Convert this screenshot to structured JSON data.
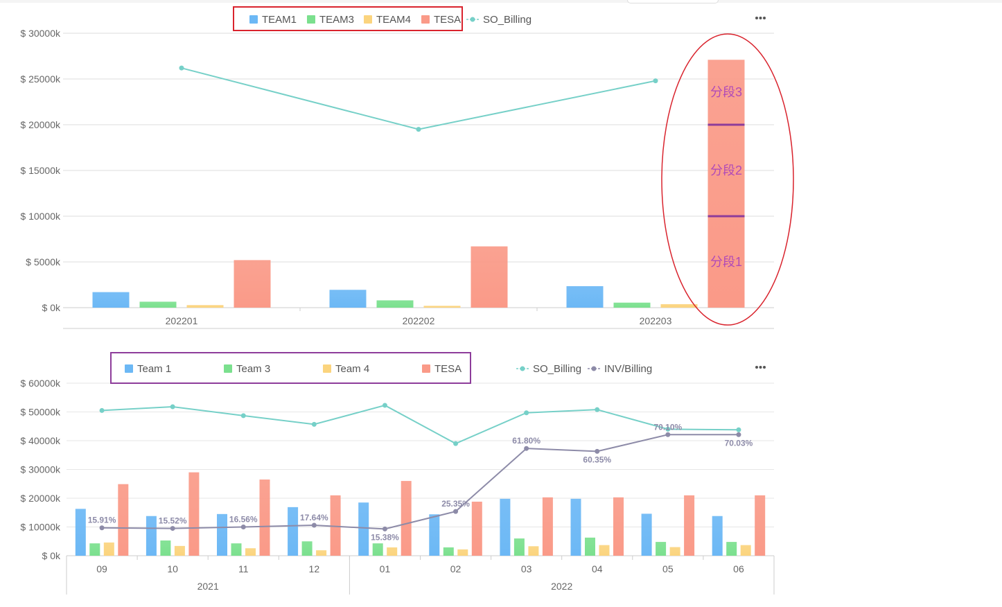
{
  "colors": {
    "team1": "#6cb8f5",
    "team3": "#7be08e",
    "team4": "#fbd47e",
    "tesa": "#fa9a88",
    "so_billing": "#76d0c8",
    "inv_billing": "#8d8ba8",
    "legend_box_red": "#d9232d",
    "legend_box_purple": "#8d3c9a",
    "ellipse": "#d9232d",
    "segment_line": "#8d3c9a",
    "segment_text": "#b04ab8"
  },
  "chart_data": [
    {
      "type": "bar",
      "title": "",
      "menu_icon": "more-dots-icon",
      "categories": [
        "202201",
        "202202",
        "202203"
      ],
      "ylim": [
        0,
        30000
      ],
      "yticks": [
        "$ 0k",
        "$ 5000k",
        "$ 10000k",
        "$ 15000k",
        "$ 20000k",
        "$ 25000k",
        "$ 30000k"
      ],
      "grid": true,
      "legend": [
        "TEAM1",
        "TEAM3",
        "TEAM4",
        "TESA",
        "SO_Billing"
      ],
      "legend_placement": "top",
      "series": [
        {
          "name": "TEAM1",
          "type": "bar",
          "values": [
            1700,
            1950,
            2350
          ]
        },
        {
          "name": "TEAM3",
          "type": "bar",
          "values": [
            650,
            800,
            550
          ]
        },
        {
          "name": "TEAM4",
          "type": "bar",
          "values": [
            280,
            200,
            380
          ]
        },
        {
          "name": "TESA",
          "type": "bar",
          "values": [
            5200,
            6700,
            27100
          ]
        },
        {
          "name": "SO_Billing",
          "type": "line",
          "values": [
            26200,
            19500,
            24800
          ]
        }
      ],
      "segments": {
        "category": "202203",
        "boundaries": [
          10000,
          20000
        ],
        "labels": [
          "分段1",
          "分段2",
          "分段3"
        ]
      }
    },
    {
      "type": "bar",
      "title": "",
      "menu_icon": "more-dots-icon",
      "categories": [
        "09",
        "10",
        "11",
        "12",
        "01",
        "02",
        "03",
        "04",
        "05",
        "06"
      ],
      "groups": [
        {
          "label": "2021",
          "count": 4
        },
        {
          "label": "2022",
          "count": 6
        }
      ],
      "ylim": [
        0,
        60000
      ],
      "yticks": [
        "$ 0k",
        "$ 10000k",
        "$ 20000k",
        "$ 30000k",
        "$ 40000k",
        "$ 50000k",
        "$ 60000k"
      ],
      "grid": true,
      "legend": [
        "Team 1",
        "Team 3",
        "Team 4",
        "TESA",
        "SO_Billing",
        "INV/Billing"
      ],
      "legend_placement": "top",
      "series": [
        {
          "name": "Team 1",
          "type": "bar",
          "values": [
            16300,
            13800,
            14500,
            16900,
            18500,
            14400,
            19800,
            19800,
            14600,
            13800
          ]
        },
        {
          "name": "Team 3",
          "type": "bar",
          "values": [
            4300,
            5300,
            4300,
            5000,
            4300,
            2900,
            6000,
            6300,
            4800,
            4800
          ]
        },
        {
          "name": "Team 4",
          "type": "bar",
          "values": [
            4600,
            3400,
            2600,
            1900,
            2900,
            2200,
            3300,
            3700,
            3000,
            3700
          ]
        },
        {
          "name": "TESA",
          "type": "bar",
          "values": [
            24900,
            29000,
            26500,
            21000,
            26000,
            18800,
            20300,
            20300,
            21000,
            21000
          ]
        },
        {
          "name": "SO_Billing",
          "type": "line",
          "values": [
            50500,
            51800,
            48700,
            45700,
            52300,
            39000,
            49700,
            50800,
            44000,
            43800
          ]
        },
        {
          "name": "INV/Billing",
          "type": "line",
          "values": [
            9700,
            9500,
            10000,
            10600,
            9300,
            15400,
            37300,
            36300,
            42100,
            42100
          ],
          "labels": [
            "15.91%",
            "15.52%",
            "16.56%",
            "17.64%",
            "15.38%",
            "25.35%",
            "61.80%",
            "60.35%",
            "70.10%",
            "70.03%"
          ]
        }
      ]
    }
  ]
}
